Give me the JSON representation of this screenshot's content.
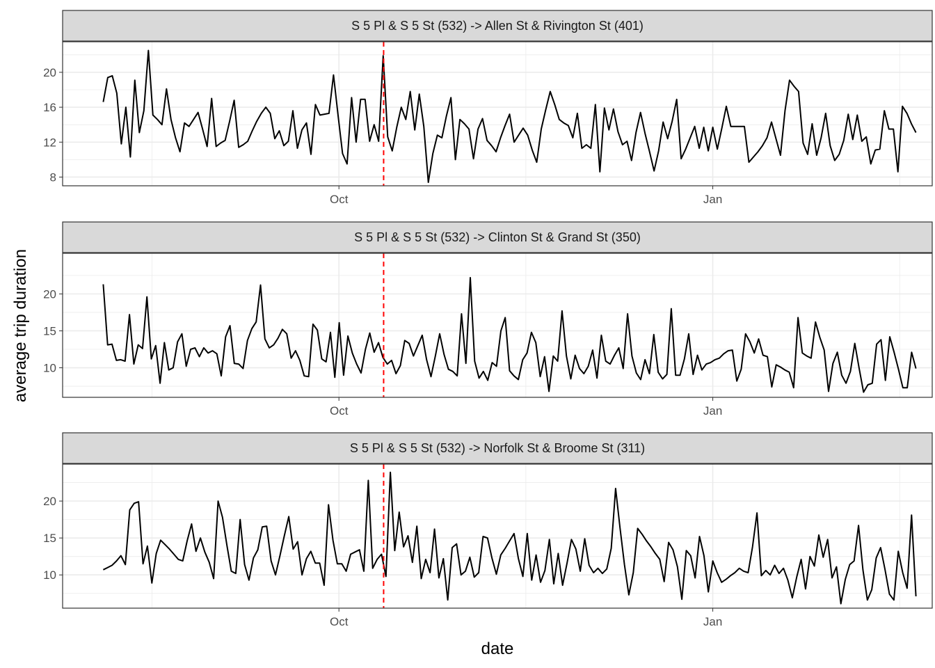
{
  "chart_data": {
    "type": "line",
    "xlabel": "date",
    "ylabel": "average trip duration",
    "grid": true,
    "x_tick_labels": [
      "Oct",
      "Jan"
    ],
    "x_range": [
      "2017-07-25",
      "2018-02-24"
    ],
    "marker_date": "2017-10-12",
    "colors": {
      "line": "#000000",
      "marker": "#ff0000",
      "strip": "#d9d9d9",
      "panel_border": "#333333",
      "grid": "#ebebeb"
    },
    "panels": [
      {
        "title": "S 5 Pl & S 5 St (532) -> Allen St & Rivington St (401)",
        "ylim": [
          7,
          23.5
        ],
        "yticks": [
          8,
          12,
          16,
          20
        ],
        "tick_labels": [
          "8",
          "12",
          "16",
          "20"
        ],
        "values": [
          16.6,
          19.4,
          19.6,
          17.6,
          11.8,
          16,
          10.3,
          19.1,
          13.1,
          15.6,
          22.5,
          15.1,
          14.6,
          14,
          18.1,
          14.6,
          12.5,
          10.9,
          14.2,
          13.8,
          14.6,
          15.4,
          13.5,
          11.5,
          17,
          11.5,
          11.9,
          12.2,
          14.4,
          16.8,
          11.4,
          11.7,
          12.1,
          13.3,
          14.4,
          15.3,
          16,
          15.3,
          12.4,
          13.3,
          11.6,
          12.1,
          15.6,
          11.3,
          13.4,
          14.2,
          10.6,
          16.3,
          15.1,
          15.2,
          15.3,
          19.7,
          15.1,
          10.7,
          9.5,
          17.1,
          12,
          16.9,
          16.9,
          12.1,
          14,
          12.1,
          21.9,
          12.6,
          11,
          13.7,
          16,
          14.6,
          17.8,
          13.4,
          17.5,
          13.8,
          7.4,
          10.7,
          12.8,
          12.5,
          15,
          17.1,
          10,
          14.6,
          14.1,
          13.5,
          10.1,
          13.5,
          14.7,
          12.2,
          11.6,
          10.9,
          12.5,
          13.9,
          15.2,
          12,
          12.8,
          13.6,
          12.8,
          11.1,
          9.7,
          13.5,
          15.7,
          17.8,
          16.3,
          14.6,
          14.2,
          13.9,
          12.5,
          15.3,
          11.3,
          11.7,
          11.3,
          16.3,
          8.6,
          15.9,
          13.4,
          15.8,
          13.2,
          11.7,
          12.1,
          9.9,
          13.1,
          15.4,
          13,
          10.9,
          8.7,
          11,
          14.3,
          12.4,
          14.4,
          16.9,
          10.1,
          11.2,
          12.5,
          13.8,
          11.3,
          13.7,
          11,
          13.7,
          11.2,
          13.6,
          16.1,
          13.8,
          13.8,
          13.8,
          13.8,
          9.7,
          10.3,
          10.9,
          11.6,
          12.5,
          14.3,
          12.4,
          10.5,
          15.6,
          19.1,
          18.4,
          17.8,
          11.9,
          10.6,
          14.1,
          10.5,
          12.5,
          15.3,
          11.6,
          9.9,
          10.6,
          12.2,
          15.2,
          12.3,
          15.1,
          12.1,
          12.6,
          9.5,
          11.1,
          11.2,
          15.6,
          13.5,
          13.5,
          8.6,
          16.1,
          15.3,
          14.1,
          13.1
        ]
      },
      {
        "title": "S 5 Pl & S 5 St (532) -> Clinton St & Grand St (350)",
        "ylim": [
          6,
          25.5
        ],
        "yticks": [
          10,
          15,
          20
        ],
        "tick_labels": [
          "10",
          "15",
          "20"
        ],
        "values": [
          21.3,
          13.1,
          13.2,
          11,
          11.1,
          10.9,
          17.2,
          10.5,
          13.1,
          12.6,
          19.6,
          11.2,
          13,
          7.9,
          13.4,
          9.7,
          10,
          13.5,
          14.6,
          10.2,
          12.5,
          12.7,
          11.5,
          12.7,
          12,
          12.3,
          11.9,
          8.9,
          14.2,
          15.7,
          10.6,
          10.5,
          9.9,
          13.7,
          15.3,
          16.2,
          21.2,
          13.9,
          12.7,
          13.1,
          14,
          15.2,
          14.6,
          11.3,
          12.3,
          11,
          8.9,
          8.8,
          15.9,
          15.1,
          11.2,
          10.8,
          14.8,
          8.7,
          16.1,
          9,
          14.3,
          12,
          10.5,
          9.3,
          12.5,
          14.7,
          12.1,
          13.4,
          11.4,
          10.5,
          11,
          9.2,
          10.3,
          13.7,
          13.3,
          11.6,
          13,
          14.4,
          11.1,
          8.8,
          11.6,
          14.6,
          11.8,
          9.8,
          9.5,
          8.9,
          17.3,
          10.6,
          22.2,
          10.9,
          8.6,
          9.5,
          8.3,
          10.7,
          10.2,
          15,
          16.8,
          9.6,
          8.9,
          8.4,
          11.1,
          12,
          14.8,
          13.4,
          8.8,
          11.5,
          6.8,
          11.6,
          10.9,
          17.7,
          11.6,
          8.5,
          11.7,
          9.9,
          9.2,
          10.2,
          12.4,
          8.6,
          14.4,
          10.9,
          10.5,
          11.7,
          12.7,
          9.9,
          17.3,
          11.6,
          9.3,
          8.4,
          11.1,
          9.2,
          14.5,
          9.4,
          8.5,
          9.1,
          18,
          9,
          9,
          11.2,
          14.6,
          9.1,
          11.7,
          9.7,
          10.5,
          10.7,
          11.1,
          11.3,
          11.9,
          12.3,
          12.4,
          8.2,
          9.8,
          14.6,
          13.5,
          12,
          13.9,
          11.7,
          11.5,
          7.4,
          10.4,
          10.1,
          9.7,
          9.4,
          7.3,
          16.8,
          12,
          11.6,
          11.3,
          16.2,
          14.1,
          12.4,
          6.8,
          10.6,
          12.1,
          9,
          7.9,
          9.5,
          13.3,
          9.9,
          6.7,
          7.7,
          7.9,
          13.2,
          13.8,
          8.3,
          14.2,
          12.1,
          9.8,
          7.3,
          7.3,
          12.1,
          9.9
        ]
      },
      {
        "title": "S 5 Pl & S 5 St (532) -> Norfolk St & Broome St (311)",
        "ylim": [
          5.5,
          25
        ],
        "yticks": [
          10,
          15,
          20
        ],
        "tick_labels": [
          "10",
          "15",
          "20"
        ],
        "values": [
          10.7,
          11,
          11.3,
          11.9,
          12.6,
          11.4,
          18.8,
          19.7,
          19.9,
          11.5,
          13.9,
          8.9,
          12.9,
          14.7,
          14.1,
          13.5,
          12.8,
          12.1,
          11.9,
          14.6,
          16.9,
          13.2,
          15,
          13.1,
          11.7,
          9.5,
          20,
          17.8,
          14,
          10.5,
          10.2,
          17.5,
          11.4,
          9.3,
          12.3,
          13.4,
          16.5,
          16.6,
          11.9,
          10,
          12.6,
          15.3,
          17.9,
          13.5,
          14.5,
          10,
          12.2,
          13.2,
          11.6,
          11.6,
          8.6,
          19.5,
          14.7,
          11.5,
          11.5,
          10.5,
          12.8,
          13.1,
          13.4,
          10.5,
          22.8,
          10.9,
          12.1,
          12.8,
          9.8,
          23.9,
          13.3,
          18.5,
          13.8,
          15.3,
          11.7,
          16.6,
          9.5,
          12.1,
          10.3,
          16.2,
          9.6,
          12.2,
          6.6,
          13.7,
          14.2,
          10,
          10.5,
          12.4,
          9.7,
          10.3,
          15.2,
          15,
          12.3,
          10.1,
          12.7,
          13.6,
          14.6,
          15.6,
          12.2,
          9.8,
          15.6,
          9.3,
          12.7,
          9,
          10.6,
          14.8,
          8.8,
          12.9,
          8.6,
          11.6,
          14.8,
          13.5,
          10.5,
          14.9,
          11.3,
          10.3,
          10.9,
          10.2,
          10.8,
          13.6,
          21.7,
          16.4,
          11.4,
          7.3,
          10.3,
          16.3,
          15.5,
          14.6,
          13.8,
          12.9,
          12.1,
          9.1,
          14.4,
          13.4,
          11.1,
          6.7,
          13.3,
          12.6,
          9.6,
          15.2,
          12.6,
          7.7,
          11.9,
          10.3,
          9,
          9.4,
          9.9,
          10.3,
          10.9,
          10.5,
          10.3,
          13.8,
          18.4,
          9.9,
          10.6,
          10,
          11.3,
          10.2,
          10.9,
          9.3,
          6.9,
          9.7,
          12.1,
          8.1,
          12.5,
          11.2,
          15.4,
          12.4,
          14.8,
          9.6,
          11.1,
          6.1,
          9.4,
          11.4,
          11.9,
          16.7,
          10.7,
          6.6,
          8,
          12.3,
          13.7,
          10.7,
          7.4,
          6.6,
          13.2,
          10.3,
          8.2,
          18.1,
          7.1
        ]
      }
    ]
  }
}
